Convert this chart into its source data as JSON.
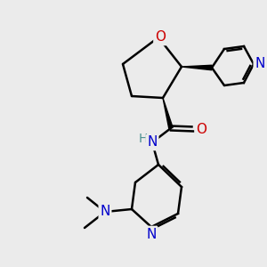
{
  "bg_color": "#ebebeb",
  "atom_colors": {
    "C": "#000000",
    "N": "#0000cc",
    "O": "#cc0000",
    "H": "#4a9090"
  },
  "bond_color": "#000000",
  "bond_width": 1.8,
  "figsize": [
    3.0,
    3.0
  ],
  "dpi": 100
}
